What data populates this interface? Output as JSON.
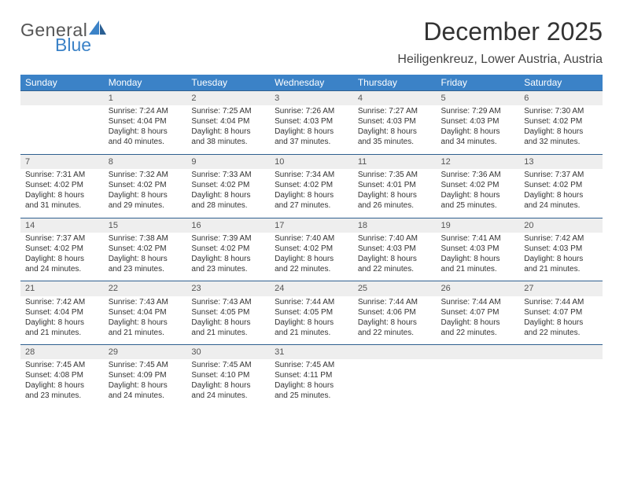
{
  "brand": {
    "general": "General",
    "blue": "Blue"
  },
  "title": "December 2025",
  "location": "Heiligenkreuz, Lower Austria, Austria",
  "colors": {
    "accent": "#3b82c7",
    "row_band": "#eeeeee",
    "divider": "#2f5f8f",
    "background": "#ffffff"
  },
  "day_headers": [
    "Sunday",
    "Monday",
    "Tuesday",
    "Wednesday",
    "Thursday",
    "Friday",
    "Saturday"
  ],
  "weeks": [
    {
      "nums": [
        "",
        "1",
        "2",
        "3",
        "4",
        "5",
        "6"
      ],
      "cells": [
        null,
        {
          "sunrise": "Sunrise: 7:24 AM",
          "sunset": "Sunset: 4:04 PM",
          "d1": "Daylight: 8 hours",
          "d2": "and 40 minutes."
        },
        {
          "sunrise": "Sunrise: 7:25 AM",
          "sunset": "Sunset: 4:04 PM",
          "d1": "Daylight: 8 hours",
          "d2": "and 38 minutes."
        },
        {
          "sunrise": "Sunrise: 7:26 AM",
          "sunset": "Sunset: 4:03 PM",
          "d1": "Daylight: 8 hours",
          "d2": "and 37 minutes."
        },
        {
          "sunrise": "Sunrise: 7:27 AM",
          "sunset": "Sunset: 4:03 PM",
          "d1": "Daylight: 8 hours",
          "d2": "and 35 minutes."
        },
        {
          "sunrise": "Sunrise: 7:29 AM",
          "sunset": "Sunset: 4:03 PM",
          "d1": "Daylight: 8 hours",
          "d2": "and 34 minutes."
        },
        {
          "sunrise": "Sunrise: 7:30 AM",
          "sunset": "Sunset: 4:02 PM",
          "d1": "Daylight: 8 hours",
          "d2": "and 32 minutes."
        }
      ]
    },
    {
      "nums": [
        "7",
        "8",
        "9",
        "10",
        "11",
        "12",
        "13"
      ],
      "cells": [
        {
          "sunrise": "Sunrise: 7:31 AM",
          "sunset": "Sunset: 4:02 PM",
          "d1": "Daylight: 8 hours",
          "d2": "and 31 minutes."
        },
        {
          "sunrise": "Sunrise: 7:32 AM",
          "sunset": "Sunset: 4:02 PM",
          "d1": "Daylight: 8 hours",
          "d2": "and 29 minutes."
        },
        {
          "sunrise": "Sunrise: 7:33 AM",
          "sunset": "Sunset: 4:02 PM",
          "d1": "Daylight: 8 hours",
          "d2": "and 28 minutes."
        },
        {
          "sunrise": "Sunrise: 7:34 AM",
          "sunset": "Sunset: 4:02 PM",
          "d1": "Daylight: 8 hours",
          "d2": "and 27 minutes."
        },
        {
          "sunrise": "Sunrise: 7:35 AM",
          "sunset": "Sunset: 4:01 PM",
          "d1": "Daylight: 8 hours",
          "d2": "and 26 minutes."
        },
        {
          "sunrise": "Sunrise: 7:36 AM",
          "sunset": "Sunset: 4:02 PM",
          "d1": "Daylight: 8 hours",
          "d2": "and 25 minutes."
        },
        {
          "sunrise": "Sunrise: 7:37 AM",
          "sunset": "Sunset: 4:02 PM",
          "d1": "Daylight: 8 hours",
          "d2": "and 24 minutes."
        }
      ]
    },
    {
      "nums": [
        "14",
        "15",
        "16",
        "17",
        "18",
        "19",
        "20"
      ],
      "cells": [
        {
          "sunrise": "Sunrise: 7:37 AM",
          "sunset": "Sunset: 4:02 PM",
          "d1": "Daylight: 8 hours",
          "d2": "and 24 minutes."
        },
        {
          "sunrise": "Sunrise: 7:38 AM",
          "sunset": "Sunset: 4:02 PM",
          "d1": "Daylight: 8 hours",
          "d2": "and 23 minutes."
        },
        {
          "sunrise": "Sunrise: 7:39 AM",
          "sunset": "Sunset: 4:02 PM",
          "d1": "Daylight: 8 hours",
          "d2": "and 23 minutes."
        },
        {
          "sunrise": "Sunrise: 7:40 AM",
          "sunset": "Sunset: 4:02 PM",
          "d1": "Daylight: 8 hours",
          "d2": "and 22 minutes."
        },
        {
          "sunrise": "Sunrise: 7:40 AM",
          "sunset": "Sunset: 4:03 PM",
          "d1": "Daylight: 8 hours",
          "d2": "and 22 minutes."
        },
        {
          "sunrise": "Sunrise: 7:41 AM",
          "sunset": "Sunset: 4:03 PM",
          "d1": "Daylight: 8 hours",
          "d2": "and 21 minutes."
        },
        {
          "sunrise": "Sunrise: 7:42 AM",
          "sunset": "Sunset: 4:03 PM",
          "d1": "Daylight: 8 hours",
          "d2": "and 21 minutes."
        }
      ]
    },
    {
      "nums": [
        "21",
        "22",
        "23",
        "24",
        "25",
        "26",
        "27"
      ],
      "cells": [
        {
          "sunrise": "Sunrise: 7:42 AM",
          "sunset": "Sunset: 4:04 PM",
          "d1": "Daylight: 8 hours",
          "d2": "and 21 minutes."
        },
        {
          "sunrise": "Sunrise: 7:43 AM",
          "sunset": "Sunset: 4:04 PM",
          "d1": "Daylight: 8 hours",
          "d2": "and 21 minutes."
        },
        {
          "sunrise": "Sunrise: 7:43 AM",
          "sunset": "Sunset: 4:05 PM",
          "d1": "Daylight: 8 hours",
          "d2": "and 21 minutes."
        },
        {
          "sunrise": "Sunrise: 7:44 AM",
          "sunset": "Sunset: 4:05 PM",
          "d1": "Daylight: 8 hours",
          "d2": "and 21 minutes."
        },
        {
          "sunrise": "Sunrise: 7:44 AM",
          "sunset": "Sunset: 4:06 PM",
          "d1": "Daylight: 8 hours",
          "d2": "and 22 minutes."
        },
        {
          "sunrise": "Sunrise: 7:44 AM",
          "sunset": "Sunset: 4:07 PM",
          "d1": "Daylight: 8 hours",
          "d2": "and 22 minutes."
        },
        {
          "sunrise": "Sunrise: 7:44 AM",
          "sunset": "Sunset: 4:07 PM",
          "d1": "Daylight: 8 hours",
          "d2": "and 22 minutes."
        }
      ]
    },
    {
      "nums": [
        "28",
        "29",
        "30",
        "31",
        "",
        "",
        ""
      ],
      "cells": [
        {
          "sunrise": "Sunrise: 7:45 AM",
          "sunset": "Sunset: 4:08 PM",
          "d1": "Daylight: 8 hours",
          "d2": "and 23 minutes."
        },
        {
          "sunrise": "Sunrise: 7:45 AM",
          "sunset": "Sunset: 4:09 PM",
          "d1": "Daylight: 8 hours",
          "d2": "and 24 minutes."
        },
        {
          "sunrise": "Sunrise: 7:45 AM",
          "sunset": "Sunset: 4:10 PM",
          "d1": "Daylight: 8 hours",
          "d2": "and 24 minutes."
        },
        {
          "sunrise": "Sunrise: 7:45 AM",
          "sunset": "Sunset: 4:11 PM",
          "d1": "Daylight: 8 hours",
          "d2": "and 25 minutes."
        },
        null,
        null,
        null
      ]
    }
  ]
}
